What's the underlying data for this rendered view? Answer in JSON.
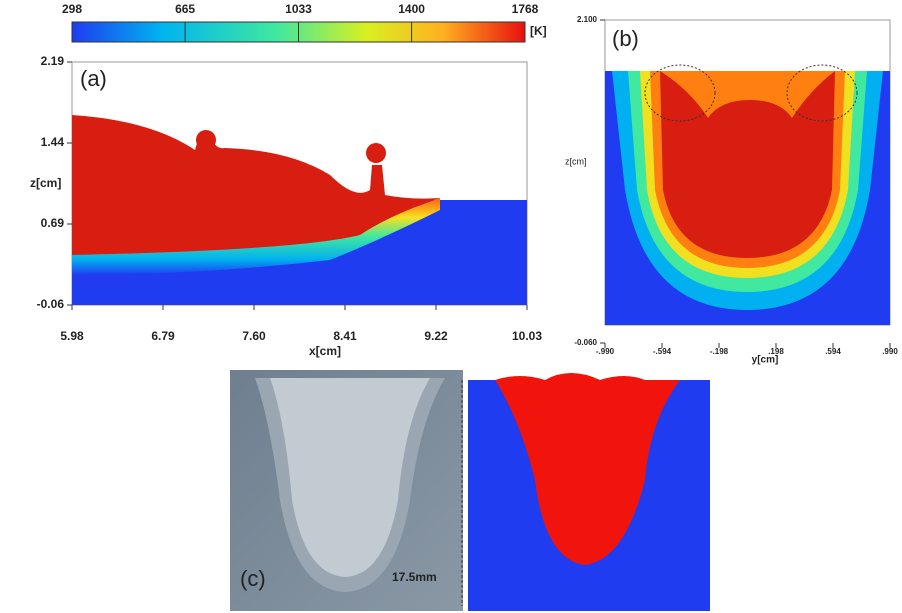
{
  "colorbar": {
    "ticks": [
      298,
      665,
      1033,
      1400,
      1768
    ],
    "lim": [
      298,
      1768
    ],
    "unit": "[K]"
  },
  "panel_a": {
    "label": "(a)",
    "xlabel": "x[cm]",
    "ylabel": "z[cm]",
    "xlim": [
      5.98,
      10.03
    ],
    "ylim": [
      -0.06,
      2.19
    ],
    "xticks": [
      5.98,
      6.79,
      {
        "value": 7.6,
        "label": "7.60"
      },
      8.41,
      9.22,
      10.03
    ],
    "yticks": [
      -0.06,
      0.69,
      1.44,
      2.19
    ]
  },
  "panel_b": {
    "label": "(b)",
    "xlabel": "y[cm]",
    "ylabel": "z[cm]",
    "xlim": [
      -0.99,
      0.99
    ],
    "ylim": [
      -0.06,
      2.1
    ],
    "xticks": [
      {
        "value": -0.99,
        "label": "-.990"
      },
      {
        "value": -0.594,
        "label": "-.594"
      },
      {
        "value": -0.198,
        "label": "-.198"
      },
      {
        "value": 0.198,
        "label": ".198"
      },
      {
        "value": 0.594,
        "label": ".594"
      },
      {
        "value": 0.99,
        "label": ".990"
      }
    ],
    "yticks": [
      {
        "value": -0.06,
        "label": "-0.060"
      },
      {
        "value": 2.1,
        "label": "2.100"
      }
    ]
  },
  "panel_c": {
    "label": "(c)",
    "scale_label": "17.5mm"
  }
}
